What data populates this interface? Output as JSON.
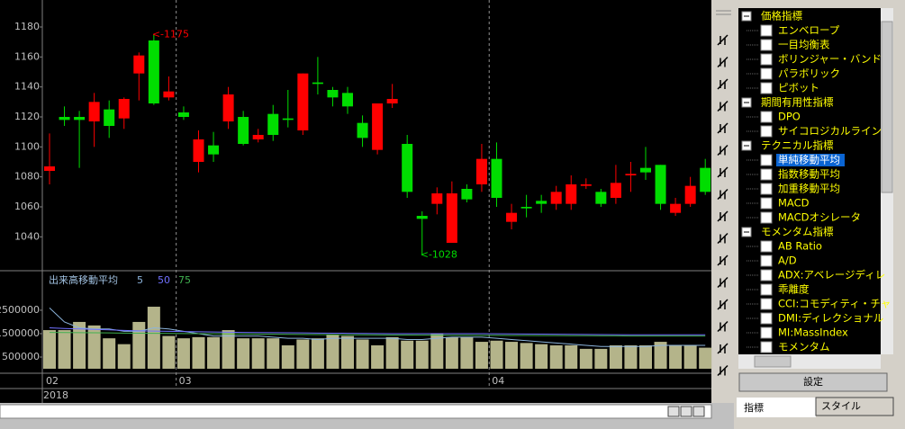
{
  "chart_data": {
    "type": "candlestick",
    "categories": [
      "02",
      null,
      null,
      null,
      null,
      null,
      null,
      null,
      null,
      "03",
      null,
      null,
      null,
      null,
      null,
      null,
      null,
      null,
      null,
      null,
      null,
      null,
      null,
      null,
      null,
      null,
      null,
      null,
      null,
      null,
      "04",
      null,
      null,
      null,
      null,
      null,
      null,
      null,
      null,
      null,
      null,
      null,
      null,
      null,
      null
    ],
    "year": "2018",
    "open": [
      1084,
      1120,
      1120,
      1117,
      1125,
      1119,
      1149,
      1171,
      1133,
      1123,
      1090,
      1101,
      1117,
      1120,
      1105,
      1122,
      1119,
      1111,
      1143,
      1138,
      1136,
      1116,
      1098,
      1129,
      1102,
      1054,
      1062,
      1036,
      1072,
      1075,
      1092,
      1050,
      1060,
      1064,
      1062,
      1062,
      1074,
      1070,
      1066,
      1081,
      1086,
      1088,
      1056,
      1062,
      1086
    ],
    "high": [
      1109,
      1127,
      1124,
      1136,
      1131,
      1133,
      1163,
      1175,
      1147,
      1127,
      1111,
      1110,
      1140,
      1124,
      1112,
      1128,
      1138,
      1149,
      1160,
      1140,
      1140,
      1121,
      1129,
      1142,
      1108,
      1057,
      1073,
      1077,
      1075,
      1102,
      1103,
      1062,
      1068,
      1068,
      1074,
      1081,
      1079,
      1072,
      1088,
      1090,
      1100,
      1088,
      1066,
      1080,
      1092
    ],
    "low": [
      1075,
      1114,
      1086,
      1100,
      1106,
      1112,
      1131,
      1128,
      1131,
      1118,
      1083,
      1090,
      1112,
      1101,
      1103,
      1104,
      1113,
      1108,
      1135,
      1127,
      1122,
      1100,
      1095,
      1126,
      1066,
      1028,
      1055,
      1036,
      1063,
      1070,
      1060,
      1045,
      1053,
      1056,
      1058,
      1058,
      1072,
      1060,
      1062,
      1070,
      1078,
      1058,
      1054,
      1060,
      1068
    ],
    "close": [
      1087,
      1118,
      1118,
      1130,
      1114,
      1132,
      1161,
      1129,
      1137,
      1120,
      1105,
      1095,
      1135,
      1102,
      1108,
      1108,
      1118,
      1149,
      1142,
      1133,
      1127,
      1106,
      1129,
      1132,
      1070,
      1052,
      1069,
      1069,
      1065,
      1092,
      1066,
      1056,
      1059,
      1062,
      1070,
      1075,
      1075,
      1062,
      1076,
      1082,
      1083,
      1062,
      1062,
      1074,
      1070
    ],
    "up_color": "#ff0000",
    "down_color": "#00dd00",
    "ylim": [
      1018,
      1198
    ],
    "yticks": [
      1040,
      1060,
      1080,
      1100,
      1120,
      1140,
      1160,
      1180
    ],
    "grid": false,
    "high_label": "<-1175",
    "low_label": "<-1028",
    "volume": {
      "title": "出来高移動平均",
      "color": "#b4b48a",
      "values": [
        1650000,
        1650000,
        2000000,
        1850000,
        1300000,
        1050000,
        2000000,
        2650000,
        1400000,
        1300000,
        1350000,
        1350000,
        1650000,
        1300000,
        1300000,
        1300000,
        1000000,
        1250000,
        1300000,
        1450000,
        1400000,
        1250000,
        1000000,
        1350000,
        1200000,
        1200000,
        1500000,
        1350000,
        1350000,
        1150000,
        1200000,
        1150000,
        1100000,
        1050000,
        1000000,
        1000000,
        850000,
        850000,
        1000000,
        1000000,
        1000000,
        1150000,
        1000000,
        1000000,
        900000
      ],
      "ylim": [
        0,
        4150000
      ],
      "yticks": [
        500000,
        1500000,
        2500000
      ],
      "ma": [
        {
          "name": "5",
          "color": "#8cb4dc",
          "values": [
            2600000,
            2000000,
            1750000,
            1700000,
            1700000,
            1600000,
            1600000,
            1750000,
            1700000,
            1600000,
            1500000,
            1400000,
            1400000,
            1400000,
            1400000,
            1350000,
            1300000,
            1300000,
            1250000,
            1300000,
            1300000,
            1300000,
            1300000,
            1300000,
            1250000,
            1250000,
            1300000,
            1350000,
            1350000,
            1350000,
            1300000,
            1250000,
            1200000,
            1150000,
            1100000,
            1050000,
            1000000,
            950000,
            950000,
            950000,
            950000,
            1000000,
            1000000,
            1000000,
            1000000
          ]
        },
        {
          "name": "50",
          "color": "#7070ff",
          "values": [
            1750000,
            1720000,
            1700000,
            1680000,
            1660000,
            1640000,
            1620000,
            1610000,
            1600000,
            1590000,
            1580000,
            1570000,
            1560000,
            1550000,
            1545000,
            1540000,
            1535000,
            1530000,
            1525000,
            1520000,
            1515000,
            1510000,
            1505000,
            1500000,
            1500000,
            1500000,
            1500000,
            1500000,
            1500000,
            1500000,
            1495000,
            1490000,
            1485000,
            1480000,
            1475000,
            1470000,
            1465000,
            1460000,
            1455000,
            1450000,
            1450000,
            1450000,
            1450000,
            1450000,
            1450000
          ]
        },
        {
          "name": "75",
          "color": "#40b050",
          "values": [
            1550000,
            1545000,
            1540000,
            1535000,
            1530000,
            1525000,
            1520000,
            1515000,
            1510000,
            1505000,
            1500000,
            1495000,
            1490000,
            1485000,
            1480000,
            1475000,
            1470000,
            1465000,
            1460000,
            1455000,
            1450000,
            1450000,
            1445000,
            1440000,
            1440000,
            1435000,
            1435000,
            1430000,
            1430000,
            1425000,
            1425000,
            1420000,
            1420000,
            1415000,
            1415000,
            1410000,
            1410000,
            1405000,
            1405000,
            1400000,
            1400000,
            1400000,
            1400000,
            1400000,
            1400000
          ]
        }
      ]
    }
  },
  "indicator_tree": {
    "groups": [
      {
        "label": "価格指標",
        "items": [
          {
            "label": "エンベロープ"
          },
          {
            "label": "一目均衡表"
          },
          {
            "label": "ボリンジャー・バンド"
          },
          {
            "label": "パラボリック"
          },
          {
            "label": "ピボット"
          }
        ]
      },
      {
        "label": "期間有用性指標",
        "items": [
          {
            "label": "DPO"
          },
          {
            "label": "サイコロジカルライン"
          }
        ]
      },
      {
        "label": "テクニカル指標",
        "items": [
          {
            "label": "単純移動平均",
            "selected": true
          },
          {
            "label": "指数移動平均"
          },
          {
            "label": "加重移動平均"
          },
          {
            "label": "MACD"
          },
          {
            "label": "MACDオシレータ"
          }
        ]
      },
      {
        "label": "モメンタム指標",
        "items": [
          {
            "label": "AB Ratio"
          },
          {
            "label": "A/D"
          },
          {
            "label": "ADX:アベレージディレ"
          },
          {
            "label": "乖離度"
          },
          {
            "label": "CCI:コモディティ・チャ"
          },
          {
            "label": "DMI:ディレクショナル"
          },
          {
            "label": "MI:MassIndex"
          },
          {
            "label": "モメンタム"
          }
        ]
      }
    ]
  },
  "settings_button": "設定",
  "tabs": [
    "指標",
    "スタイル"
  ]
}
